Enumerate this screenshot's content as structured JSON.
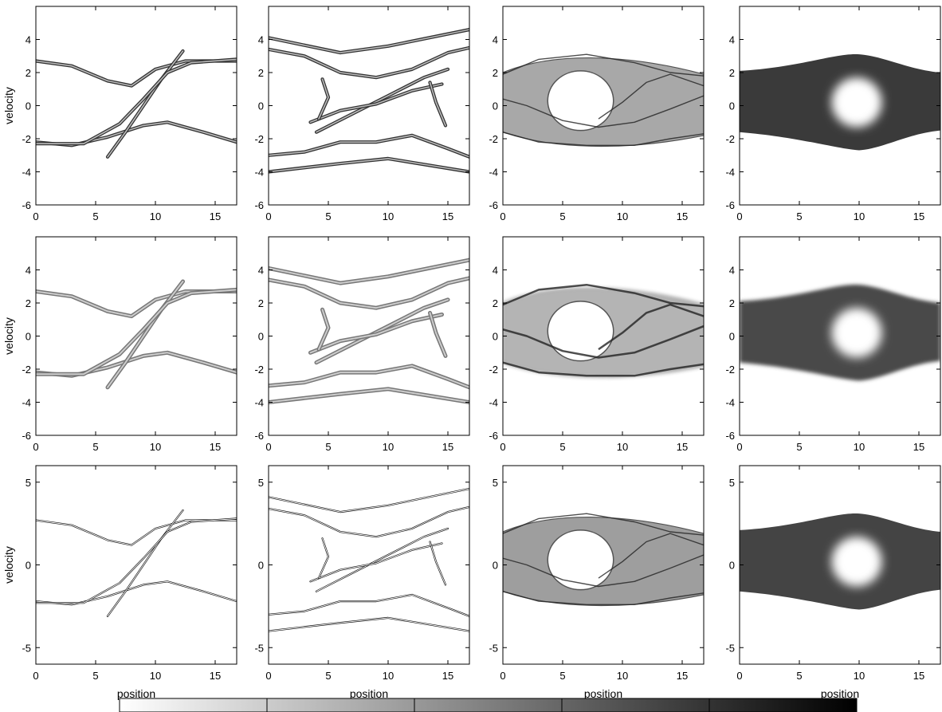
{
  "chart_data": {
    "type": "heatmap",
    "layout_words": "3 rows by 4 columns of phase-space density panels with a shared grayscale colorbar at the bottom",
    "colors": {
      "background": "#ffffff",
      "frame": "#000000",
      "low": "#ffffff",
      "high": "#000000"
    },
    "xlabel": "position",
    "ylabel": "velocity",
    "xlim": [
      0,
      16.8
    ],
    "xticks": [
      0,
      5,
      10,
      15
    ],
    "rows": [
      {
        "ylim": [
          -6,
          6
        ],
        "yticks": [
          -6,
          -4,
          -2,
          0,
          2,
          4
        ]
      },
      {
        "ylim": [
          -6,
          6
        ],
        "yticks": [
          -6,
          -4,
          -2,
          0,
          2,
          4
        ]
      },
      {
        "ylim": [
          -6,
          6
        ],
        "yticks": [
          -5,
          0,
          5
        ]
      }
    ],
    "columns": [
      {
        "structure": "filaments"
      },
      {
        "structure": "filaments"
      },
      {
        "structure": "vortex",
        "center": [
          6.5,
          0.3
        ],
        "width": 5.5,
        "height": 3.6
      },
      {
        "structure": "hole",
        "center": [
          9.8,
          0.2
        ],
        "width": 4.2,
        "height": 3.0
      }
    ],
    "filaments": [
      {
        "column": 0,
        "points": [
          [
            0,
            2.7
          ],
          [
            3,
            2.4
          ],
          [
            6,
            1.5
          ],
          [
            8,
            1.2
          ],
          [
            10,
            2.2
          ],
          [
            12.5,
            2.7
          ],
          [
            16.8,
            2.7
          ]
        ]
      },
      {
        "column": 0,
        "points": [
          [
            0,
            -2.2
          ],
          [
            3,
            -2.4
          ],
          [
            6,
            -1.9
          ],
          [
            9,
            -1.2
          ],
          [
            11,
            -1.0
          ],
          [
            14,
            -1.6
          ],
          [
            16.8,
            -2.2
          ]
        ]
      },
      {
        "column": 0,
        "points": [
          [
            6,
            -3.1
          ],
          [
            7.5,
            -1.6
          ],
          [
            9,
            0
          ],
          [
            10.5,
            1.6
          ],
          [
            12.3,
            3.3
          ]
        ]
      },
      {
        "column": 0,
        "points": [
          [
            0,
            -2.3
          ],
          [
            4,
            -2.3
          ],
          [
            7,
            -1.1
          ],
          [
            9,
            0.4
          ],
          [
            11,
            2.0
          ],
          [
            13,
            2.6
          ],
          [
            16.8,
            2.8
          ]
        ]
      },
      {
        "column": 1,
        "points": [
          [
            0,
            3.4
          ],
          [
            3,
            3.0
          ],
          [
            6,
            2.0
          ],
          [
            9,
            1.7
          ],
          [
            12,
            2.2
          ],
          [
            15,
            3.2
          ],
          [
            16.8,
            3.5
          ]
        ]
      },
      {
        "column": 1,
        "points": [
          [
            0,
            -3.0
          ],
          [
            3,
            -2.8
          ],
          [
            6,
            -2.2
          ],
          [
            9,
            -2.2
          ],
          [
            12,
            -1.8
          ],
          [
            15,
            -2.6
          ],
          [
            16.8,
            -3.1
          ]
        ]
      },
      {
        "column": 1,
        "points": [
          [
            4,
            -1.6
          ],
          [
            7,
            -0.5
          ],
          [
            10,
            0.6
          ],
          [
            13,
            1.7
          ],
          [
            15,
            2.2
          ]
        ]
      },
      {
        "column": 1,
        "points": [
          [
            3.5,
            -1.0
          ],
          [
            6,
            -0.3
          ],
          [
            9,
            0.1
          ],
          [
            12,
            0.9
          ],
          [
            14.5,
            1.3
          ]
        ]
      },
      {
        "column": 1,
        "points": [
          [
            4.5,
            1.6
          ],
          [
            5,
            0.5
          ],
          [
            4.2,
            -0.8
          ]
        ]
      },
      {
        "column": 1,
        "points": [
          [
            13.5,
            1.4
          ],
          [
            14,
            0.2
          ],
          [
            14.8,
            -1.2
          ]
        ]
      },
      {
        "column": 1,
        "points": [
          [
            0,
            4.1
          ],
          [
            6,
            3.2
          ],
          [
            10,
            3.6
          ],
          [
            16.8,
            4.6
          ]
        ]
      },
      {
        "column": 1,
        "points": [
          [
            0,
            -4.0
          ],
          [
            6,
            -3.5
          ],
          [
            10,
            -3.2
          ],
          [
            16.8,
            -4.0
          ]
        ]
      },
      {
        "column": 2,
        "points": [
          [
            0,
            1.9
          ],
          [
            3,
            2.8
          ],
          [
            7,
            3.1
          ],
          [
            11,
            2.6
          ],
          [
            14,
            2.0
          ],
          [
            16.8,
            1.8
          ]
        ]
      },
      {
        "column": 2,
        "points": [
          [
            0,
            -1.6
          ],
          [
            3,
            -2.2
          ],
          [
            7,
            -2.4
          ],
          [
            11,
            -2.4
          ],
          [
            14,
            -2.0
          ],
          [
            16.8,
            -1.7
          ]
        ]
      },
      {
        "column": 2,
        "points": [
          [
            8,
            -0.8
          ],
          [
            10,
            0.2
          ],
          [
            12,
            1.4
          ],
          [
            14,
            1.9
          ],
          [
            16.8,
            1.2
          ]
        ]
      },
      {
        "column": 2,
        "points": [
          [
            0,
            0.4
          ],
          [
            2,
            0.0
          ],
          [
            5,
            -0.9
          ],
          [
            8,
            -1.3
          ],
          [
            11,
            -1.0
          ],
          [
            14,
            -0.2
          ],
          [
            16.8,
            0.6
          ]
        ]
      }
    ],
    "colorbar": {
      "orientation": "horizontal",
      "segments": 5,
      "tick_labels": []
    }
  }
}
